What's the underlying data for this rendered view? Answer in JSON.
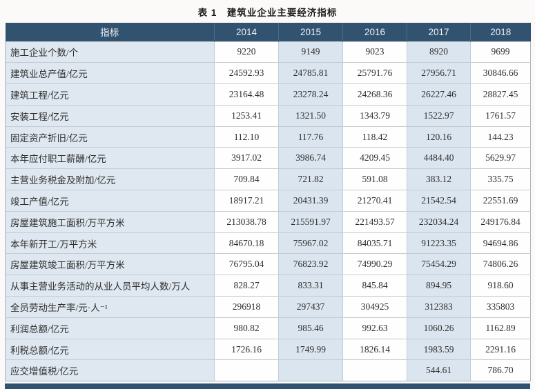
{
  "page": {
    "title": "表 1　建筑业企业主要经济指标"
  },
  "table": {
    "headers": [
      "指标",
      "2014",
      "2015",
      "2016",
      "2017",
      "2018"
    ],
    "rows": [
      {
        "label": "施工企业个数/个",
        "values": [
          "9220",
          "9149",
          "9023",
          "8920",
          "9699"
        ]
      },
      {
        "label": "建筑业总产值/亿元",
        "values": [
          "24592.93",
          "24785.81",
          "25791.76",
          "27956.71",
          "30846.66"
        ]
      },
      {
        "label": "建筑工程/亿元",
        "values": [
          "23164.48",
          "23278.24",
          "24268.36",
          "26227.46",
          "28827.45"
        ]
      },
      {
        "label": "安装工程/亿元",
        "values": [
          "1253.41",
          "1321.50",
          "1343.79",
          "1522.97",
          "1761.57"
        ]
      },
      {
        "label": "固定资产折旧/亿元",
        "values": [
          "112.10",
          "117.76",
          "118.42",
          "120.16",
          "144.23"
        ]
      },
      {
        "label": "本年应付职工薪酬/亿元",
        "values": [
          "3917.02",
          "3986.74",
          "4209.45",
          "4484.40",
          "5629.97"
        ]
      },
      {
        "label": "主营业务税金及附加/亿元",
        "values": [
          "709.84",
          "721.82",
          "591.08",
          "383.12",
          "335.75"
        ]
      },
      {
        "label": "竣工产值/亿元",
        "values": [
          "18917.21",
          "20431.39",
          "21270.41",
          "21542.54",
          "22551.69"
        ]
      },
      {
        "label": "房屋建筑施工面积/万平方米",
        "values": [
          "213038.78",
          "215591.97",
          "221493.57",
          "232034.24",
          "249176.84"
        ]
      },
      {
        "label": "本年新开工/万平方米",
        "values": [
          "84670.18",
          "75967.02",
          "84035.71",
          "91223.35",
          "94694.86"
        ]
      },
      {
        "label": "房屋建筑竣工面积/万平方米",
        "values": [
          "76795.04",
          "76823.92",
          "74990.29",
          "75454.29",
          "74806.26"
        ]
      },
      {
        "label": "从事主营业务活动的从业人员平均人数/万人",
        "values": [
          "828.27",
          "833.31",
          "845.84",
          "894.95",
          "918.60"
        ]
      },
      {
        "label": "全员劳动生产率/元·人⁻¹",
        "values": [
          "296918",
          "297437",
          "304925",
          "312383",
          "335803"
        ]
      },
      {
        "label": "利润总额/亿元",
        "values": [
          "980.82",
          "985.46",
          "992.63",
          "1060.26",
          "1162.89"
        ]
      },
      {
        "label": "利税总额/亿元",
        "values": [
          "1726.16",
          "1749.99",
          "1826.14",
          "1983.59",
          "2291.16"
        ]
      },
      {
        "label": "应交增值税/亿元",
        "values": [
          "",
          "",
          "",
          "544.61",
          "786.70"
        ]
      }
    ]
  },
  "colors": {
    "header_bg": "#32536f",
    "header_text": "#eef2f6",
    "stripe_bg": "#dbe5ef",
    "label_col_bg": "#dfe8f1",
    "white_cell_bg": "#fefefe",
    "border": "#c3ccd4",
    "outer_border": "#a9b5bf",
    "body_text": "#2e2e2e",
    "footer_bar_bg": "#32536f",
    "page_bg": "#fbfaf8"
  }
}
